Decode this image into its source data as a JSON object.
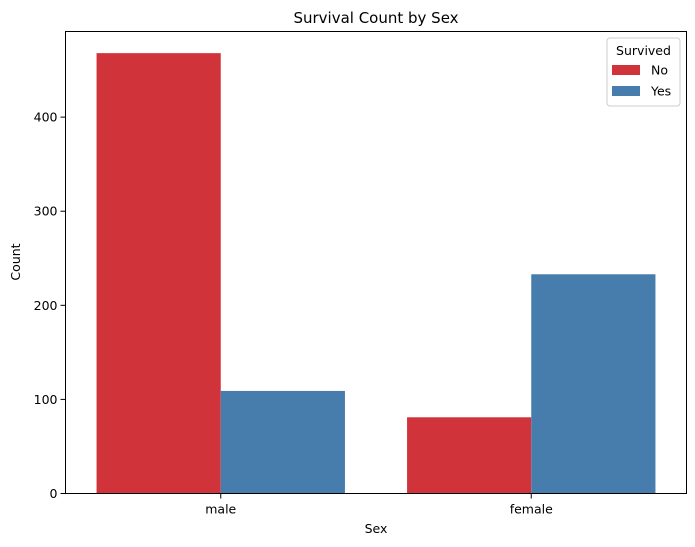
{
  "chart_data": {
    "type": "bar",
    "title": "Survival Count by Sex",
    "xlabel": "Sex",
    "ylabel": "Count",
    "categories": [
      "male",
      "female"
    ],
    "series": [
      {
        "name": "No",
        "values": [
          468,
          81
        ],
        "color": "#d0343a"
      },
      {
        "name": "Yes",
        "values": [
          109,
          233
        ],
        "color": "#467dad"
      }
    ],
    "ylim": [
      0,
      491
    ],
    "yticks": [
      0,
      100,
      200,
      300,
      400
    ],
    "grid": false,
    "legend": {
      "title": "Survived",
      "placement": "top-right"
    }
  }
}
